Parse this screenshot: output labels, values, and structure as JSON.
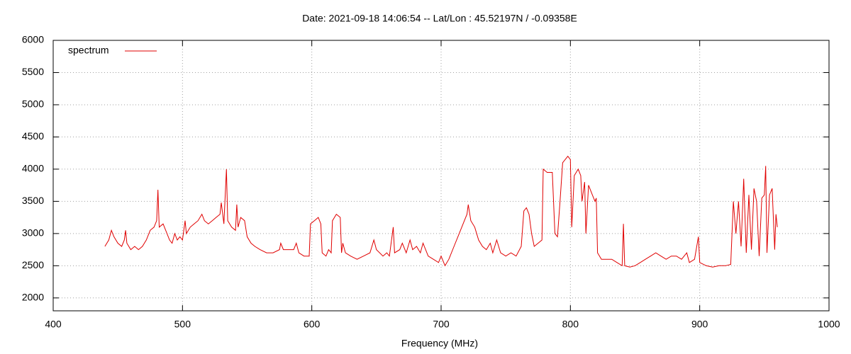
{
  "chart_data": {
    "type": "line",
    "title": "Date: 2021-09-18 14:06:54  --  Lat/Lon : 45.52197N / -0.09358E",
    "x_label": "Frequency (MHz)",
    "xlim": [
      400,
      1000
    ],
    "xticks": [
      400,
      500,
      600,
      700,
      800,
      900,
      1000
    ],
    "ylim": [
      1800,
      6000
    ],
    "yticks": [
      2000,
      2500,
      3000,
      3500,
      4000,
      4500,
      5000,
      5500,
      6000
    ],
    "grid": true,
    "legend": "top-left",
    "series": [
      {
        "name": "spectrum",
        "color": "#e00000",
        "x": [
          440,
          443,
          445,
          447,
          450,
          453,
          455,
          456,
          457,
          460,
          463,
          466,
          469,
          472,
          475,
          478,
          480,
          481,
          482,
          485,
          488,
          490,
          492,
          494,
          496,
          498,
          500,
          502,
          503,
          506,
          509,
          512,
          515,
          517,
          520,
          523,
          526,
          529,
          530,
          532,
          534,
          535,
          538,
          541,
          542,
          543,
          545,
          548,
          550,
          553,
          556,
          560,
          565,
          570,
          575,
          576,
          578,
          582,
          586,
          588,
          590,
          594,
          598,
          599,
          602,
          605,
          607,
          608,
          611,
          613,
          615,
          616,
          619,
          622,
          623,
          624,
          626,
          630,
          635,
          640,
          645,
          648,
          650,
          655,
          658,
          660,
          663,
          664,
          668,
          670,
          673,
          676,
          678,
          681,
          684,
          686,
          690,
          694,
          698,
          700,
          703,
          706,
          710,
          714,
          718,
          720,
          721,
          723,
          726,
          729,
          732,
          735,
          738,
          740,
          743,
          746,
          750,
          754,
          758,
          762,
          764,
          766,
          768,
          770,
          772,
          775,
          778,
          779,
          782,
          786,
          788,
          790,
          792,
          794,
          798,
          800,
          801,
          803,
          806,
          808,
          809,
          811,
          812,
          814,
          817,
          819,
          820,
          821,
          824,
          828,
          832,
          836,
          840,
          841,
          842,
          846,
          850,
          854,
          858,
          862,
          866,
          870,
          874,
          878,
          882,
          886,
          890,
          892,
          896,
          899,
          900,
          905,
          910,
          915,
          920,
          924,
          926,
          928,
          930,
          932,
          934,
          936,
          938,
          940,
          942,
          944,
          946,
          948,
          950,
          951,
          952,
          954,
          956,
          958,
          959,
          960
        ],
        "values": [
          2800,
          2900,
          3050,
          2950,
          2850,
          2800,
          2900,
          3050,
          2850,
          2750,
          2800,
          2750,
          2800,
          2900,
          3050,
          3100,
          3200,
          3680,
          3100,
          3150,
          3000,
          2900,
          2850,
          3000,
          2900,
          2950,
          2900,
          3200,
          3000,
          3100,
          3150,
          3200,
          3300,
          3200,
          3150,
          3200,
          3250,
          3300,
          3480,
          3150,
          4000,
          3200,
          3100,
          3050,
          3450,
          3100,
          3250,
          3200,
          2950,
          2850,
          2800,
          2750,
          2700,
          2700,
          2750,
          2850,
          2750,
          2750,
          2750,
          2850,
          2700,
          2650,
          2650,
          3150,
          3200,
          3250,
          3150,
          2700,
          2650,
          2750,
          2700,
          3200,
          3300,
          3250,
          2700,
          2850,
          2700,
          2650,
          2600,
          2650,
          2700,
          2900,
          2750,
          2650,
          2700,
          2650,
          3100,
          2700,
          2750,
          2850,
          2700,
          2900,
          2750,
          2800,
          2700,
          2850,
          2650,
          2600,
          2550,
          2650,
          2500,
          2600,
          2800,
          3000,
          3200,
          3300,
          3450,
          3200,
          3100,
          2900,
          2800,
          2750,
          2850,
          2700,
          2900,
          2700,
          2650,
          2700,
          2650,
          2800,
          3350,
          3400,
          3300,
          3000,
          2800,
          2850,
          2900,
          4000,
          3950,
          3950,
          3000,
          2950,
          3500,
          4100,
          4200,
          4150,
          3100,
          3900,
          4000,
          3900,
          3500,
          3800,
          3000,
          3750,
          3600,
          3500,
          3550,
          2700,
          2600,
          2600,
          2600,
          2550,
          2500,
          3150,
          2500,
          2480,
          2500,
          2550,
          2600,
          2650,
          2700,
          2650,
          2600,
          2650,
          2650,
          2600,
          2700,
          2550,
          2600,
          2950,
          2550,
          2500,
          2480,
          2500,
          2500,
          2520,
          3500,
          3000,
          3500,
          2800,
          3850,
          2700,
          3600,
          2750,
          3700,
          3500,
          2650,
          3550,
          3600,
          4050,
          2700,
          3600,
          3700,
          2750,
          3300,
          3100
        ]
      }
    ]
  }
}
